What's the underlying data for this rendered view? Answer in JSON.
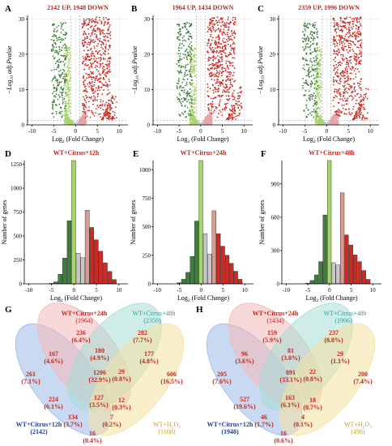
{
  "colors": {
    "down_dark": "#3e7d3e",
    "down_light": "#a8d46c",
    "ns": "#c8c8c8",
    "up_light": "#e8a3a3",
    "up_dark": "#cc2a24",
    "hist_up_light": "#d99a8f",
    "title_red": "#c0281f",
    "venn_blue": "#9db9e6",
    "venn_red": "#f2b8b8",
    "venn_teal": "#a8dcd6",
    "venn_yellow": "#f4e2a0"
  },
  "chart_data": [
    {
      "type": "scatter",
      "panel": "A",
      "title": "2142 UP, 1948 DOWN",
      "xlabel": "Log2 (Fold Change)",
      "ylabel": "−Log10 adj.Pvalue",
      "xlim": [
        -11,
        12
      ],
      "ylim": [
        0,
        31
      ],
      "xticks": [
        "-10",
        "-5",
        "0",
        "5",
        "10"
      ],
      "yticks": [
        "0",
        "10",
        "20",
        "30"
      ]
    },
    {
      "type": "scatter",
      "panel": "B",
      "title": "1964 UP, 1434 DOWN",
      "xlabel": "Log2 (Fold Change)",
      "ylabel": "−Log10 adj.Pvalue",
      "xlim": [
        -11,
        12
      ],
      "ylim": [
        0,
        31
      ],
      "xticks": [
        "-10",
        "-5",
        "0",
        "5",
        "10"
      ],
      "yticks": [
        "0",
        "10",
        "20",
        "30"
      ]
    },
    {
      "type": "scatter",
      "panel": "C",
      "title": "2359 UP, 1996 DOWN",
      "xlabel": "Log2 (Fold Change)",
      "ylabel": "−Log10 adj.Pvalue",
      "xlim": [
        -11,
        12
      ],
      "ylim": [
        0,
        31
      ],
      "xticks": [
        "-10",
        "-5",
        "0",
        "5",
        "10"
      ],
      "yticks": [
        "0",
        "10",
        "20",
        "30"
      ]
    },
    {
      "type": "bar",
      "panel": "D",
      "title": "WT+Citrus+12h",
      "xlabel": "Log2 (Fold Change)",
      "ylabel": "Number of genes",
      "xlim": [
        -11,
        12
      ],
      "ylim": [
        0,
        1290
      ],
      "xticks": [
        "-10",
        "-5",
        "0",
        "5",
        "10"
      ],
      "yticks": [
        "0",
        "250",
        "500",
        "750",
        "1000",
        "1250"
      ],
      "bins": [
        -5,
        -4,
        -3,
        -2,
        -1,
        0,
        1,
        2,
        3,
        4,
        5,
        6,
        7,
        8,
        9
      ],
      "values": [
        5,
        20,
        100,
        270,
        660,
        1290,
        320,
        275,
        770,
        590,
        460,
        340,
        220,
        130,
        45
      ]
    },
    {
      "type": "bar",
      "panel": "E",
      "title": "WT+Citrus+24h",
      "xlabel": "Log2 (Fold Change)",
      "ylabel": "Number of genes",
      "xlim": [
        -11,
        12
      ],
      "ylim": [
        0,
        1080
      ],
      "xticks": [
        "-10",
        "-5",
        "0",
        "5",
        "10"
      ],
      "yticks": [
        "0",
        "250",
        "500",
        "750",
        "1000"
      ],
      "bins": [
        -5,
        -4,
        -3,
        -2,
        -1,
        0,
        1,
        2,
        3,
        4,
        5,
        6,
        7,
        8,
        9
      ],
      "values": [
        10,
        40,
        100,
        240,
        550,
        1080,
        440,
        260,
        640,
        440,
        330,
        250,
        180,
        110,
        40
      ]
    },
    {
      "type": "bar",
      "panel": "F",
      "title": "WT+Citrus+48h",
      "xlabel": "Log2 (Fold Change)",
      "ylabel": "Number of genes",
      "xlim": [
        -11,
        12
      ],
      "ylim": [
        0,
        1110
      ],
      "xticks": [
        "-10",
        "-5",
        "0",
        "5",
        "10"
      ],
      "yticks": [
        "0",
        "300",
        "600",
        "900"
      ],
      "bins": [
        -5,
        -4,
        -3,
        -2,
        -1,
        0,
        1,
        2,
        3,
        4,
        5,
        6,
        7,
        8,
        9
      ],
      "values": [
        5,
        30,
        80,
        200,
        620,
        1110,
        190,
        170,
        820,
        440,
        350,
        260,
        200,
        120,
        40
      ]
    }
  ],
  "venn_G": {
    "label": "G",
    "sets": {
      "s12": [
        "WT+Citrus+12h",
        "(2142)"
      ],
      "s24": [
        "WT+Citrus+24h",
        "(1964)"
      ],
      "s48": [
        "WT+Citrus+48h",
        "(2359)"
      ],
      "h2o2": [
        "WT+H₂O₂",
        "(1108)"
      ]
    },
    "regions": [
      [
        "236",
        "(6.4%)"
      ],
      [
        "282",
        "(7.7%)"
      ],
      [
        "167",
        "(4.6%)"
      ],
      [
        "180",
        "(4.9%)"
      ],
      [
        "177",
        "(4.8%)"
      ],
      [
        "261",
        "(7.1%)"
      ],
      [
        "1206",
        "(32.9%)"
      ],
      [
        "29",
        "(0.8%)"
      ],
      [
        "606",
        "(16.5%)"
      ],
      [
        "224",
        "(6.1%)"
      ],
      [
        "127",
        "(3.5%)"
      ],
      [
        "12",
        "(0.3%)"
      ],
      [
        "134",
        "(3.7%)"
      ],
      [
        "7",
        "(0.2%)"
      ],
      [
        "16",
        "(0.4%)"
      ]
    ]
  },
  "venn_H": {
    "label": "H",
    "sets": {
      "s12": [
        "WT+Citrus+12h",
        "(1948)"
      ],
      "s24": [
        "WT+Citrus+24h",
        "(1434)"
      ],
      "s48": [
        "WT+Citrus+48h",
        "(1996)"
      ],
      "h2o2": [
        "WT+H₂O₂",
        "(498)"
      ]
    },
    "regions": [
      [
        "159",
        "(5.9%)"
      ],
      [
        "237",
        "(8.8%)"
      ],
      [
        "96",
        "(3.6%)"
      ],
      [
        "81",
        "(3.0%)"
      ],
      [
        "29",
        "(1.1%)"
      ],
      [
        "205",
        "(7.6%)"
      ],
      [
        "891",
        "(33.1%)"
      ],
      [
        "22",
        "(0.8%)"
      ],
      [
        "200",
        "(7.4%)"
      ],
      [
        "527",
        "(19.6%)"
      ],
      [
        "163",
        "(6.1%)"
      ],
      [
        "18",
        "(0.7%)"
      ],
      [
        "46",
        "(1.7%)"
      ],
      [
        "4",
        "(0.1%)"
      ],
      [
        "16",
        "(0.6%)"
      ]
    ]
  }
}
